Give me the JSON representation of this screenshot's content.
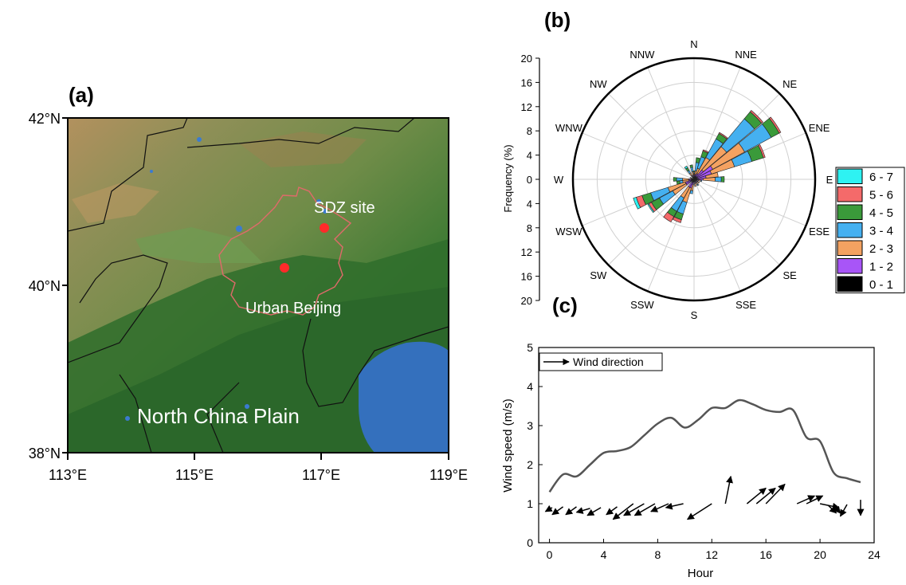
{
  "panels": {
    "a": "(a)",
    "b": "(b)",
    "c": "(c)"
  },
  "map": {
    "lat_labels": [
      "42°N",
      "40°N",
      "38°N"
    ],
    "lon_labels": [
      "113°E",
      "115°E",
      "117°E",
      "119°E"
    ],
    "places": {
      "sdz": "SDZ site",
      "urban": "Urban Beijing",
      "plain": "North China Plain"
    }
  },
  "chart_data": [
    {
      "type": "wind_rose",
      "ylabel": "Frequency (%)",
      "rlim": [
        0,
        20
      ],
      "radial_ticks": [
        "20",
        "16",
        "12",
        "8",
        "4",
        "0",
        "4",
        "8",
        "12",
        "16",
        "20"
      ],
      "directions": [
        "N",
        "NNE",
        "NE",
        "ENE",
        "E",
        "ESE",
        "SE",
        "SSE",
        "S",
        "SSW",
        "SW",
        "WSW",
        "W",
        "WNW",
        "NW",
        "NNW"
      ],
      "legend": [
        "6 - 7",
        "5 - 6",
        "4 - 5",
        "3 - 4",
        "2 - 3",
        "1 - 2",
        "0 - 1"
      ],
      "legend_position": "right",
      "bins": [
        "0 - 1",
        "1 - 2",
        "2 - 3",
        "3 - 4",
        "4 - 5",
        "5 - 6",
        "6 - 7"
      ],
      "bin_colors": [
        "#000000",
        "#a855f7",
        "#f4a261",
        "#45b0f0",
        "#3a9a3a",
        "#f46a6a",
        "#2ef2f2"
      ],
      "sectors": [
        {
          "angle": 0,
          "values": [
            0.4,
            0.3,
            0.3,
            0.2,
            0.2,
            0,
            0
          ]
        },
        {
          "angle": 11.25,
          "values": [
            0.4,
            0.4,
            0.6,
            1.4,
            0.8,
            0,
            0
          ]
        },
        {
          "angle": 22.5,
          "values": [
            0.5,
            0.4,
            1.0,
            2.0,
            1.0,
            0.2,
            0
          ]
        },
        {
          "angle": 33.75,
          "values": [
            0.5,
            0.6,
            3.0,
            3.5,
            1.0,
            0.2,
            0
          ]
        },
        {
          "angle": 45,
          "values": [
            0.5,
            1.5,
            5.0,
            6.0,
            1.5,
            0.3,
            0
          ]
        },
        {
          "angle": 56.25,
          "values": [
            0.5,
            3.0,
            6.0,
            5.0,
            1.5,
            0.3,
            0
          ]
        },
        {
          "angle": 67.5,
          "values": [
            0.5,
            2.5,
            4.0,
            3.0,
            2.0,
            0.3,
            0
          ]
        },
        {
          "angle": 78.75,
          "values": [
            0.5,
            1.5,
            2.0,
            0,
            0,
            0,
            0
          ]
        },
        {
          "angle": 90,
          "values": [
            0.5,
            1.0,
            2.0,
            1.0,
            0.5,
            0,
            0
          ]
        },
        {
          "angle": 101.25,
          "values": [
            0.5,
            0.3,
            0.3,
            0.2,
            0,
            0,
            0
          ]
        },
        {
          "angle": 123.75,
          "values": [
            0.4,
            0.3,
            0.3,
            0,
            0,
            0,
            0
          ]
        },
        {
          "angle": 146.25,
          "values": [
            0.4,
            0.3,
            0.3,
            0.2,
            0,
            0,
            0
          ]
        },
        {
          "angle": 168.75,
          "values": [
            0.4,
            0.3,
            0.5,
            0,
            0,
            0,
            0
          ]
        },
        {
          "angle": 191.25,
          "values": [
            0.4,
            0.5,
            1.0,
            0.5,
            0,
            0,
            0
          ]
        },
        {
          "angle": 202.5,
          "values": [
            0.5,
            1.0,
            2.5,
            2.0,
            1.0,
            0.5,
            0
          ]
        },
        {
          "angle": 213.75,
          "values": [
            0.5,
            1.0,
            2.0,
            2.5,
            1.0,
            1.0,
            0
          ]
        },
        {
          "angle": 236.25,
          "values": [
            0.5,
            1.0,
            2.5,
            2.5,
            1.5,
            0.5,
            0.2
          ]
        },
        {
          "angle": 247.5,
          "values": [
            0.5,
            1.0,
            3.0,
            3.0,
            1.5,
            1.0,
            0.5
          ]
        },
        {
          "angle": 258.75,
          "values": [
            0.4,
            0.5,
            1.0,
            0.5,
            0.5,
            0,
            0
          ]
        },
        {
          "angle": 270,
          "values": [
            0.4,
            0.5,
            1.0,
            1.0,
            0.5,
            0,
            0
          ]
        },
        {
          "angle": 292.5,
          "values": [
            0.3,
            0.2,
            0.2,
            0,
            0,
            0,
            0
          ]
        },
        {
          "angle": 326.25,
          "values": [
            0.4,
            0.3,
            0.5,
            0.5,
            0.5,
            0,
            0.3
          ]
        },
        {
          "angle": 348.75,
          "values": [
            0.4,
            0.3,
            0.6,
            0.7,
            0.4,
            0,
            0
          ]
        }
      ]
    },
    {
      "type": "line",
      "xlabel": "Hour",
      "ylabel": "Wind speed (m/s)",
      "xlim": [
        -0.8,
        24
      ],
      "ylim": [
        0,
        5
      ],
      "xticks": [
        0,
        4,
        8,
        12,
        16,
        20,
        24
      ],
      "yticks": [
        0,
        1,
        2,
        3,
        4,
        5
      ],
      "legend": "Wind direction",
      "legend_position": "top-left",
      "series": [
        {
          "x": [
            0,
            1,
            2,
            3,
            4,
            5,
            6,
            7,
            8,
            9,
            10,
            11,
            12,
            13,
            14,
            15,
            16,
            17,
            18,
            19,
            20,
            21,
            22,
            23
          ],
          "values": [
            1.3,
            1.75,
            1.7,
            2.0,
            2.3,
            2.35,
            2.45,
            2.75,
            3.05,
            3.2,
            2.95,
            3.15,
            3.45,
            3.45,
            3.65,
            3.55,
            3.4,
            3.35,
            3.4,
            2.7,
            2.6,
            1.8,
            1.65,
            1.55
          ]
        }
      ],
      "arrows": [
        {
          "x": 0.2,
          "y": 0.9,
          "dx": -0.5,
          "dy": -0.1
        },
        {
          "x": 1.0,
          "y": 0.92,
          "dx": -0.8,
          "dy": -0.2
        },
        {
          "x": 2.0,
          "y": 0.92,
          "dx": -0.8,
          "dy": -0.2
        },
        {
          "x": 3.0,
          "y": 0.88,
          "dx": -1.0,
          "dy": -0.1
        },
        {
          "x": 3.8,
          "y": 0.9,
          "dx": -1.0,
          "dy": -0.2
        },
        {
          "x": 5.0,
          "y": 0.92,
          "dx": -0.8,
          "dy": -0.2
        },
        {
          "x": 6.2,
          "y": 1.0,
          "dx": -1.5,
          "dy": -0.4
        },
        {
          "x": 7.0,
          "y": 1.0,
          "dx": -1.5,
          "dy": -0.3
        },
        {
          "x": 7.8,
          "y": 1.0,
          "dx": -1.5,
          "dy": -0.3
        },
        {
          "x": 8.8,
          "y": 1.0,
          "dx": -1.3,
          "dy": -0.2
        },
        {
          "x": 9.9,
          "y": 1.0,
          "dx": -1.3,
          "dy": -0.1
        },
        {
          "x": 12.0,
          "y": 1.0,
          "dx": -1.8,
          "dy": -0.4
        },
        {
          "x": 13.0,
          "y": 1.0,
          "dx": 0.4,
          "dy": 0.7
        },
        {
          "x": 14.6,
          "y": 1.0,
          "dx": 1.4,
          "dy": 0.4
        },
        {
          "x": 15.3,
          "y": 1.0,
          "dx": 1.4,
          "dy": 0.4
        },
        {
          "x": 16.0,
          "y": 1.0,
          "dx": 1.4,
          "dy": 0.5
        },
        {
          "x": 18.3,
          "y": 1.0,
          "dx": 1.3,
          "dy": 0.2
        },
        {
          "x": 19.0,
          "y": 1.0,
          "dx": 1.2,
          "dy": 0.2
        },
        {
          "x": 20.0,
          "y": 1.0,
          "dx": 1.4,
          "dy": -0.1
        },
        {
          "x": 20.6,
          "y": 0.96,
          "dx": 0.6,
          "dy": -0.2
        },
        {
          "x": 21.0,
          "y": 0.96,
          "dx": 0.5,
          "dy": -0.2
        },
        {
          "x": 22.0,
          "y": 0.98,
          "dx": -0.5,
          "dy": -0.3
        },
        {
          "x": 23.0,
          "y": 1.1,
          "dx": 0.0,
          "dy": -0.4
        }
      ]
    }
  ]
}
